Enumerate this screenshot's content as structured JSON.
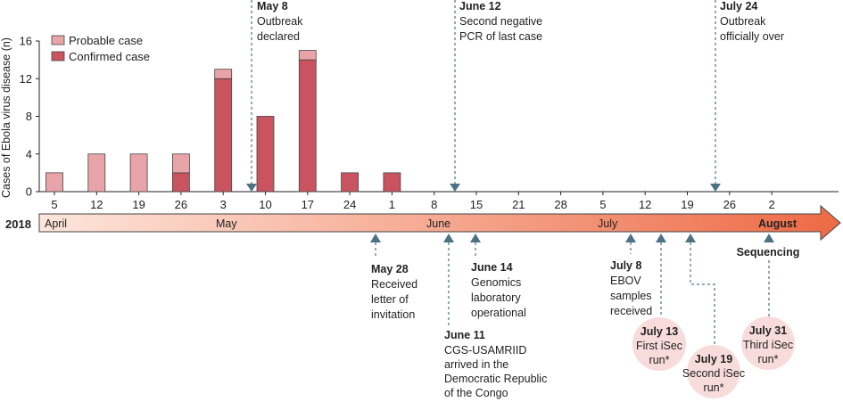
{
  "chart_data": {
    "type": "bar",
    "ylabel": "Cases of Ebola virus disease (n)",
    "ylim": [
      0,
      16
    ],
    "yticks": [
      0,
      4,
      8,
      12,
      16
    ],
    "x_ticks": [
      "5",
      "12",
      "19",
      "26",
      "3",
      "10",
      "17",
      "24",
      "1",
      "8",
      "15",
      "21",
      "28",
      "5",
      "12",
      "19",
      "26",
      "2"
    ],
    "categories": [
      "5",
      "12",
      "19",
      "26",
      "3",
      "10",
      "17",
      "24",
      "1"
    ],
    "series": [
      {
        "name": "Confirmed case",
        "values": [
          0,
          0,
          0,
          2,
          12,
          8,
          14,
          2,
          2
        ]
      },
      {
        "name": "Probable case",
        "values": [
          2,
          4,
          4,
          2,
          1,
          0,
          1,
          0,
          0
        ]
      }
    ],
    "legend": [
      {
        "label": "Probable case",
        "color": "#e8a4a8"
      },
      {
        "label": "Confirmed case",
        "color": "#c9535f"
      }
    ],
    "legend_placement": "top-left"
  },
  "colors": {
    "probable": "#e8a4a8",
    "confirmed": "#c9535f",
    "arrow_start": "#fde6dc",
    "arrow_end": "#ee6a45",
    "marker": "#4d7283",
    "circle": "#f8dcdc"
  },
  "timeline": {
    "year": "2018",
    "months": [
      "April",
      "May",
      "June",
      "July",
      "August"
    ]
  },
  "top_events": [
    {
      "date": "May 8",
      "text": [
        "Outbreak",
        "declared"
      ]
    },
    {
      "date": "June 12",
      "text": [
        "Second negative",
        "PCR of last case"
      ]
    },
    {
      "date": "July 24",
      "text": [
        "Outbreak",
        "officially over"
      ]
    }
  ],
  "bottom_events": [
    {
      "date": "May 28",
      "text": [
        "Received",
        "letter of",
        "invitation"
      ]
    },
    {
      "date": "June 11",
      "text": [
        "CGS-USAMRIID",
        "arrived in the",
        "Democratic Republic",
        "of the Congo"
      ]
    },
    {
      "date": "June 14",
      "text": [
        "Genomics",
        "laboratory",
        "operational"
      ]
    },
    {
      "date": "July 8",
      "text": [
        "EBOV",
        "samples",
        "received"
      ]
    },
    {
      "date": "July 13",
      "text": [
        "First iSec",
        "run*"
      ]
    },
    {
      "date": "July 19",
      "text": [
        "Second iSec",
        "run*"
      ]
    },
    {
      "date": "July 31",
      "text": [
        "Third iSec",
        "run*"
      ]
    }
  ],
  "sequencing_label": "Sequencing"
}
